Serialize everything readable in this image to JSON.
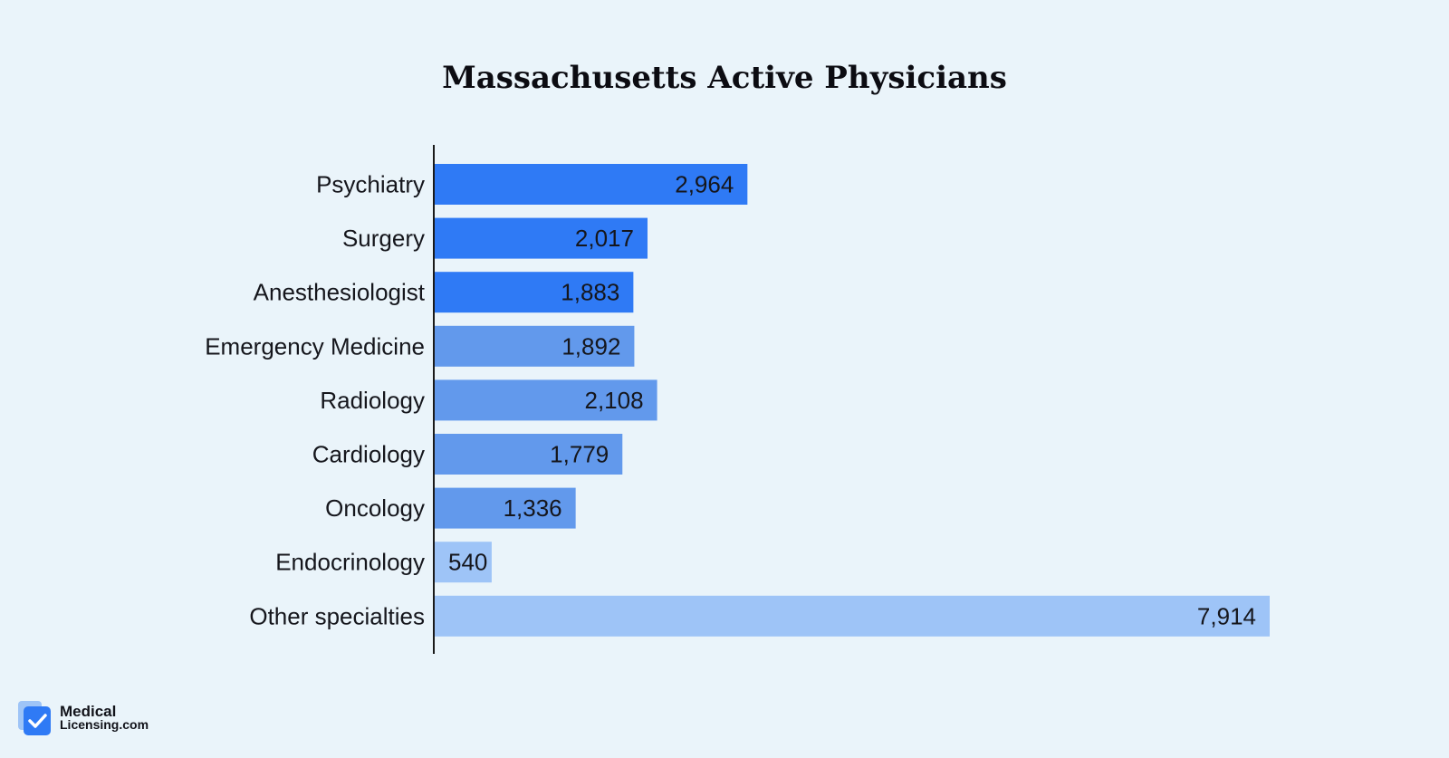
{
  "chart_data": {
    "type": "bar",
    "orientation": "horizontal",
    "title": "Massachusetts Active Physicians",
    "categories": [
      "Psychiatry",
      "Surgery",
      "Anesthesiologist",
      "Emergency Medicine",
      "Radiology",
      "Cardiology",
      "Oncology",
      "Endocrinology",
      "Other specialties"
    ],
    "values": [
      2964,
      2017,
      1883,
      1892,
      2108,
      1779,
      1336,
      540,
      7914
    ],
    "value_labels": [
      "2,964",
      "2,017",
      "1,883",
      "1,892",
      "2,108",
      "1,779",
      "1,336",
      "540",
      "7,914"
    ],
    "bar_colors": [
      "#2f7af5",
      "#2f7af5",
      "#2f7af5",
      "#6299ec",
      "#6299ec",
      "#6299ec",
      "#6299ec",
      "#9ec4f7",
      "#9ec4f7"
    ],
    "xlim": [
      0,
      7914
    ],
    "grid": false,
    "legend": "none"
  },
  "branding": {
    "logo_line1": "Medical",
    "logo_line2": "Licensing.com",
    "logo_color": "#2f7af5"
  }
}
